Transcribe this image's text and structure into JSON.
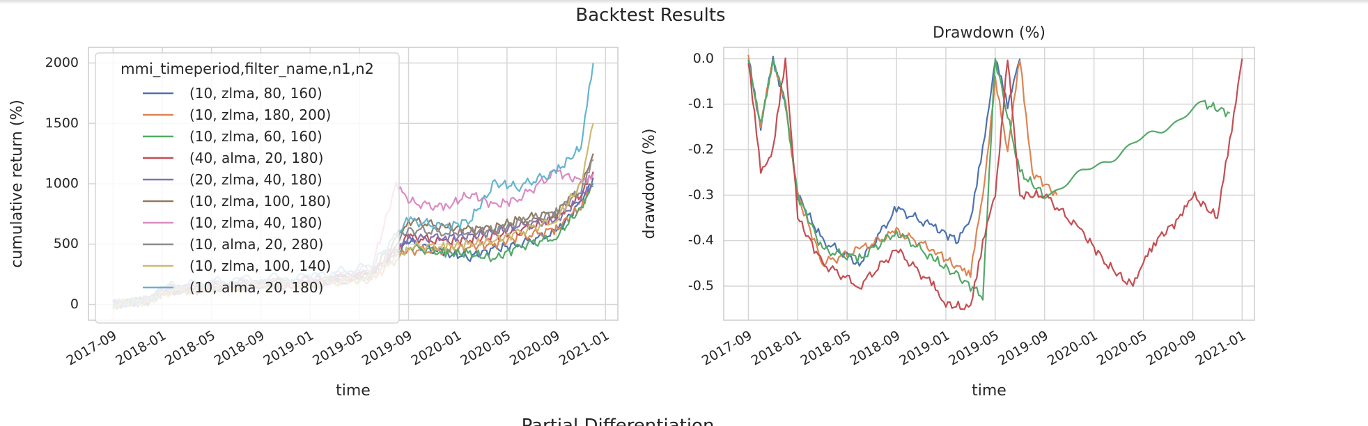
{
  "figure": {
    "suptitle": "Backtest Results",
    "next_section_title": "Partial Differentiation"
  },
  "chart_data": [
    {
      "type": "line",
      "title": "",
      "xlabel": "time",
      "ylabel": "cumulative return (%)",
      "x_ticks": [
        "2017-09",
        "2018-01",
        "2018-05",
        "2018-09",
        "2019-01",
        "2019-05",
        "2019-09",
        "2020-01",
        "2020-05",
        "2020-09",
        "2021-01"
      ],
      "y_ticks": [
        0,
        500,
        1000,
        1500,
        2000
      ],
      "xlim": [
        "2017-07",
        "2021-02"
      ],
      "ylim": [
        -130,
        2130
      ],
      "grid": true,
      "legend": {
        "title": "mmi_timeperiod,filter_name,n1,n2",
        "placement": "top-left"
      },
      "series": [
        {
          "name": "(10, zlma, 80, 160)",
          "color": "#4c72b0",
          "points": [
            [
              "2017-09",
              0
            ],
            [
              "2017-12",
              30
            ],
            [
              "2018-01",
              120
            ],
            [
              "2018-06",
              160
            ],
            [
              "2019-01",
              190
            ],
            [
              "2019-06",
              250
            ],
            [
              "2019-09",
              520
            ],
            [
              "2019-12",
              420
            ],
            [
              "2020-02",
              400
            ],
            [
              "2020-04",
              460
            ],
            [
              "2020-06",
              500
            ],
            [
              "2020-09",
              600
            ],
            [
              "2020-11",
              850
            ],
            [
              "2020-12",
              1050
            ]
          ]
        },
        {
          "name": "(10, zlma, 180, 200)",
          "color": "#dd8452",
          "points": [
            [
              "2017-09",
              0
            ],
            [
              "2017-12",
              30
            ],
            [
              "2018-01",
              100
            ],
            [
              "2018-06",
              140
            ],
            [
              "2019-01",
              160
            ],
            [
              "2019-06",
              220
            ],
            [
              "2019-09",
              450
            ],
            [
              "2019-12",
              450
            ],
            [
              "2020-02",
              480
            ],
            [
              "2020-04",
              500
            ],
            [
              "2020-06",
              560
            ],
            [
              "2020-09",
              620
            ],
            [
              "2020-11",
              820
            ],
            [
              "2020-12",
              1000
            ]
          ]
        },
        {
          "name": "(10, zlma, 60, 160)",
          "color": "#55a868",
          "points": [
            [
              "2017-09",
              0
            ],
            [
              "2017-12",
              40
            ],
            [
              "2018-01",
              110
            ],
            [
              "2018-06",
              150
            ],
            [
              "2019-01",
              170
            ],
            [
              "2019-06",
              230
            ],
            [
              "2019-09",
              480
            ],
            [
              "2019-12",
              430
            ],
            [
              "2020-02",
              420
            ],
            [
              "2020-04",
              380
            ],
            [
              "2020-06",
              480
            ],
            [
              "2020-09",
              560
            ],
            [
              "2020-11",
              800
            ],
            [
              "2020-12",
              980
            ]
          ]
        },
        {
          "name": "(40, alma, 20, 180)",
          "color": "#c44e52",
          "points": [
            [
              "2017-09",
              0
            ],
            [
              "2017-12",
              40
            ],
            [
              "2018-01",
              120
            ],
            [
              "2018-06",
              160
            ],
            [
              "2019-01",
              180
            ],
            [
              "2019-06",
              250
            ],
            [
              "2019-09",
              560
            ],
            [
              "2019-12",
              520
            ],
            [
              "2020-02",
              540
            ],
            [
              "2020-04",
              560
            ],
            [
              "2020-06",
              620
            ],
            [
              "2020-09",
              720
            ],
            [
              "2020-11",
              900
            ],
            [
              "2020-12",
              1100
            ]
          ]
        },
        {
          "name": "(20, zlma, 40, 180)",
          "color": "#8172b3",
          "points": [
            [
              "2017-09",
              0
            ],
            [
              "2017-12",
              35
            ],
            [
              "2018-01",
              115
            ],
            [
              "2018-06",
              150
            ],
            [
              "2019-01",
              175
            ],
            [
              "2019-06",
              240
            ],
            [
              "2019-09",
              540
            ],
            [
              "2019-12",
              560
            ],
            [
              "2020-02",
              560
            ],
            [
              "2020-04",
              600
            ],
            [
              "2020-06",
              650
            ],
            [
              "2020-09",
              700
            ],
            [
              "2020-11",
              880
            ],
            [
              "2020-12",
              1000
            ]
          ]
        },
        {
          "name": "(10, zlma, 100, 180)",
          "color": "#937860",
          "points": [
            [
              "2017-09",
              0
            ],
            [
              "2017-12",
              35
            ],
            [
              "2018-01",
              110
            ],
            [
              "2018-06",
              150
            ],
            [
              "2019-01",
              175
            ],
            [
              "2019-06",
              260
            ],
            [
              "2019-09",
              700
            ],
            [
              "2019-12",
              640
            ],
            [
              "2020-02",
              620
            ],
            [
              "2020-04",
              640
            ],
            [
              "2020-06",
              700
            ],
            [
              "2020-09",
              760
            ],
            [
              "2020-11",
              980
            ],
            [
              "2020-12",
              1250
            ]
          ]
        },
        {
          "name": "(10, zlma, 40, 180)",
          "color": "#da8bc3",
          "points": [
            [
              "2017-09",
              0
            ],
            [
              "2017-12",
              40
            ],
            [
              "2018-01",
              130
            ],
            [
              "2018-06",
              180
            ],
            [
              "2019-01",
              200
            ],
            [
              "2019-06",
              300
            ],
            [
              "2019-08",
              1000
            ],
            [
              "2019-09",
              850
            ],
            [
              "2019-12",
              800
            ],
            [
              "2020-02",
              920
            ],
            [
              "2020-04",
              820
            ],
            [
              "2020-06",
              880
            ],
            [
              "2020-09",
              1100
            ],
            [
              "2020-11",
              1020
            ],
            [
              "2020-12",
              1080
            ]
          ]
        },
        {
          "name": "(10, alma, 20, 280)",
          "color": "#8c8c8c",
          "points": [
            [
              "2017-09",
              0
            ],
            [
              "2017-12",
              35
            ],
            [
              "2018-01",
              110
            ],
            [
              "2018-06",
              150
            ],
            [
              "2019-01",
              175
            ],
            [
              "2019-06",
              250
            ],
            [
              "2019-09",
              620
            ],
            [
              "2019-12",
              600
            ],
            [
              "2020-02",
              600
            ],
            [
              "2020-04",
              620
            ],
            [
              "2020-06",
              680
            ],
            [
              "2020-09",
              760
            ],
            [
              "2020-11",
              950
            ],
            [
              "2020-12",
              1200
            ]
          ]
        },
        {
          "name": "(10, zlma, 100, 140)",
          "color": "#ccb974",
          "points": [
            [
              "2017-09",
              0
            ],
            [
              "2017-12",
              30
            ],
            [
              "2018-01",
              100
            ],
            [
              "2018-06",
              140
            ],
            [
              "2019-01",
              165
            ],
            [
              "2019-06",
              220
            ],
            [
              "2019-09",
              480
            ],
            [
              "2019-12",
              480
            ],
            [
              "2020-02",
              500
            ],
            [
              "2020-04",
              530
            ],
            [
              "2020-06",
              600
            ],
            [
              "2020-09",
              700
            ],
            [
              "2020-11",
              1000
            ],
            [
              "2020-12",
              1500
            ]
          ]
        },
        {
          "name": "(10, alma, 20, 180)",
          "color": "#64b5cd",
          "points": [
            [
              "2017-09",
              0
            ],
            [
              "2017-12",
              40
            ],
            [
              "2018-01",
              140
            ],
            [
              "2018-06",
              200
            ],
            [
              "2019-01",
              230
            ],
            [
              "2019-06",
              320
            ],
            [
              "2019-09",
              700
            ],
            [
              "2019-12",
              640
            ],
            [
              "2020-02",
              700
            ],
            [
              "2020-04",
              1000
            ],
            [
              "2020-06",
              980
            ],
            [
              "2020-09",
              1100
            ],
            [
              "2020-11",
              1300
            ],
            [
              "2020-12",
              2000
            ]
          ]
        }
      ]
    },
    {
      "type": "line",
      "title": "Drawdown (%)",
      "xlabel": "time",
      "ylabel": "drawdown (%)",
      "x_ticks": [
        "2017-09",
        "2018-01",
        "2018-05",
        "2018-09",
        "2019-01",
        "2019-05",
        "2019-09",
        "2020-01",
        "2020-05",
        "2020-09",
        "2021-01"
      ],
      "y_ticks": [
        0.0,
        -0.1,
        -0.2,
        -0.3,
        -0.4,
        -0.5
      ],
      "xlim": [
        "2017-07",
        "2021-02"
      ],
      "ylim": [
        -0.575,
        0.025
      ],
      "grid": true,
      "series": [
        {
          "color": "#4c72b0",
          "points": [
            [
              "2017-09",
              0
            ],
            [
              "2017-10",
              -0.15
            ],
            [
              "2017-11",
              0
            ],
            [
              "2017-12",
              -0.1
            ],
            [
              "2018-01",
              -0.3
            ],
            [
              "2018-03",
              -0.4
            ],
            [
              "2018-06",
              -0.45
            ],
            [
              "2018-09",
              -0.33
            ],
            [
              "2018-12",
              -0.37
            ],
            [
              "2019-02",
              -0.4
            ],
            [
              "2019-03",
              -0.35
            ],
            [
              "2019-04",
              -0.2
            ],
            [
              "2019-05",
              0
            ],
            [
              "2019-06",
              -0.1
            ],
            [
              "2019-07",
              0
            ]
          ]
        },
        {
          "color": "#dd8452",
          "points": [
            [
              "2017-09",
              0
            ],
            [
              "2017-10",
              -0.15
            ],
            [
              "2017-11",
              0
            ],
            [
              "2017-12",
              -0.1
            ],
            [
              "2018-01",
              -0.3
            ],
            [
              "2018-03",
              -0.45
            ],
            [
              "2018-06",
              -0.42
            ],
            [
              "2018-09",
              -0.38
            ],
            [
              "2018-12",
              -0.42
            ],
            [
              "2019-02",
              -0.46
            ],
            [
              "2019-03",
              -0.47
            ],
            [
              "2019-04",
              -0.3
            ],
            [
              "2019-05",
              -0.05
            ],
            [
              "2019-06",
              -0.2
            ],
            [
              "2019-07",
              0
            ],
            [
              "2019-08",
              -0.25
            ],
            [
              "2019-10",
              -0.3
            ]
          ]
        },
        {
          "color": "#55a868",
          "points": [
            [
              "2017-09",
              0
            ],
            [
              "2017-10",
              -0.15
            ],
            [
              "2017-11",
              0
            ],
            [
              "2017-12",
              -0.1
            ],
            [
              "2018-01",
              -0.3
            ],
            [
              "2018-03",
              -0.42
            ],
            [
              "2018-06",
              -0.44
            ],
            [
              "2018-09",
              -0.38
            ],
            [
              "2018-12",
              -0.44
            ],
            [
              "2019-02",
              -0.48
            ],
            [
              "2019-04",
              -0.52
            ],
            [
              "2019-05",
              0
            ],
            [
              "2019-07",
              -0.25
            ],
            [
              "2019-09",
              -0.3
            ],
            [
              "2020-10",
              -0.1
            ],
            [
              "2020-12",
              -0.12
            ]
          ]
        },
        {
          "color": "#c44e52",
          "points": [
            [
              "2017-09",
              0
            ],
            [
              "2017-10",
              -0.25
            ],
            [
              "2017-11",
              -0.2
            ],
            [
              "2017-12",
              0
            ],
            [
              "2018-01",
              -0.35
            ],
            [
              "2018-03",
              -0.45
            ],
            [
              "2018-06",
              -0.5
            ],
            [
              "2018-09",
              -0.42
            ],
            [
              "2018-12",
              -0.5
            ],
            [
              "2019-01",
              -0.54
            ],
            [
              "2019-03",
              -0.55
            ],
            [
              "2019-04",
              -0.4
            ],
            [
              "2019-05",
              -0.3
            ],
            [
              "2019-06",
              0
            ],
            [
              "2019-07",
              -0.3
            ],
            [
              "2019-09",
              -0.3
            ],
            [
              "2019-12",
              -0.38
            ],
            [
              "2020-02",
              -0.45
            ],
            [
              "2020-04",
              -0.5
            ],
            [
              "2020-05",
              -0.45
            ],
            [
              "2020-06",
              -0.4
            ],
            [
              "2020-08",
              -0.35
            ],
            [
              "2020-09",
              -0.3
            ],
            [
              "2020-11",
              -0.35
            ],
            [
              "2020-12",
              -0.18
            ],
            [
              "2021-01",
              0
            ]
          ]
        }
      ]
    }
  ]
}
